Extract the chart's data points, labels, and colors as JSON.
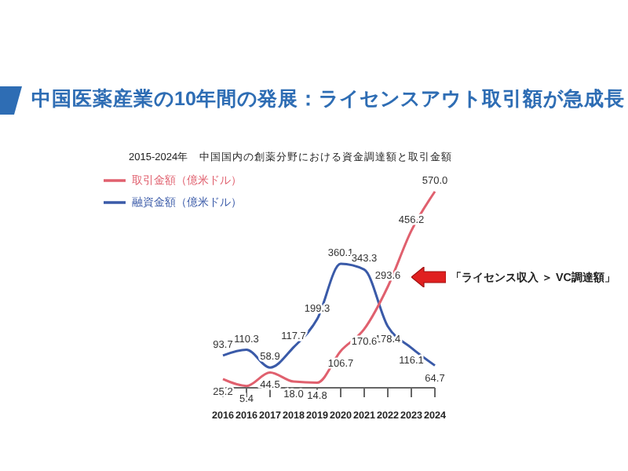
{
  "chart_data": {
    "type": "line",
    "title": "中国医薬産業の10年間の発展：ライセンスアウト取引額が急成長",
    "subtitle": "2015-2024年　中国国内の創薬分野における資金調達額と取引金額",
    "categories": [
      "2016",
      "2016",
      "2017",
      "2018",
      "2019",
      "2020",
      "2021",
      "2022",
      "2023",
      "2024"
    ],
    "series": [
      {
        "name": "融資金額（億米ドル）",
        "color": "#3a5aa8",
        "values": [
          93.7,
          110.3,
          58.9,
          117.7,
          199.3,
          360.1,
          343.3,
          178.4,
          116.1,
          64.7
        ]
      },
      {
        "name": "取引金額（億米ドル）",
        "color": "#e0606e",
        "values": [
          25.2,
          5.4,
          44.5,
          18.0,
          14.8,
          106.7,
          170.6,
          293.6,
          456.2,
          570.0
        ],
        "value_labels": [
          "25.2",
          "5.4",
          "44.5",
          "18.0",
          "14.8",
          "106.7",
          "170.6",
          "293.6",
          "456.2",
          "570.0"
        ]
      }
    ],
    "data_labels": true,
    "legend": "top left",
    "grid": false,
    "annotations": [
      "「ライセンス収入 ＞ VC調達額」"
    ]
  }
}
